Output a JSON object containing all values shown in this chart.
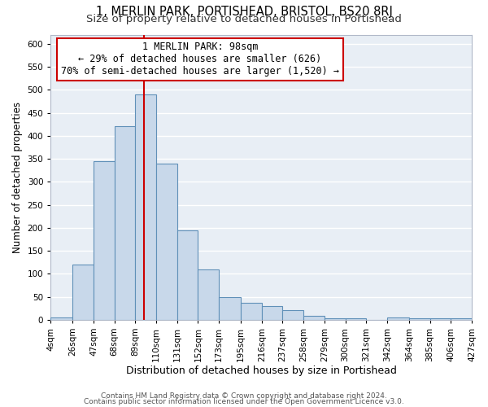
{
  "title_line1": "1, MERLIN PARK, PORTISHEAD, BRISTOL, BS20 8RJ",
  "title_line2": "Size of property relative to detached houses in Portishead",
  "xlabel": "Distribution of detached houses by size in Portishead",
  "ylabel": "Number of detached properties",
  "bar_edges": [
    4,
    26,
    47,
    68,
    89,
    110,
    131,
    152,
    173,
    195,
    216,
    237,
    258,
    279,
    300,
    321,
    342,
    364,
    385,
    406,
    427
  ],
  "bar_heights": [
    5,
    120,
    345,
    420,
    490,
    340,
    195,
    110,
    50,
    37,
    30,
    20,
    8,
    3,
    3,
    0,
    5,
    3,
    3,
    3
  ],
  "bar_color": "#c8d8ea",
  "bar_edge_color": "#6090b8",
  "bg_color": "#e8eef5",
  "grid_color": "#ffffff",
  "annotation_title": "1 MERLIN PARK: 98sqm",
  "annotation_line2": "← 29% of detached houses are smaller (626)",
  "annotation_line3": "70% of semi-detached houses are larger (1,520) →",
  "annotation_box_edge": "#cc0000",
  "marker_line_x": 98,
  "marker_line_color": "#cc0000",
  "ylim": [
    0,
    620
  ],
  "xlim": [
    4,
    427
  ],
  "yticks": [
    0,
    50,
    100,
    150,
    200,
    250,
    300,
    350,
    400,
    450,
    500,
    550,
    600
  ],
  "tick_labels": [
    "4sqm",
    "26sqm",
    "47sqm",
    "68sqm",
    "89sqm",
    "110sqm",
    "131sqm",
    "152sqm",
    "173sqm",
    "195sqm",
    "216sqm",
    "237sqm",
    "258sqm",
    "279sqm",
    "300sqm",
    "321sqm",
    "342sqm",
    "364sqm",
    "385sqm",
    "406sqm",
    "427sqm"
  ],
  "footer_line1": "Contains HM Land Registry data © Crown copyright and database right 2024.",
  "footer_line2": "Contains public sector information licensed under the Open Government Licence v3.0.",
  "title1_fontsize": 10.5,
  "title2_fontsize": 9.5,
  "xlabel_fontsize": 9,
  "ylabel_fontsize": 8.5,
  "tick_fontsize": 7.5,
  "annotation_fontsize": 8.5,
  "footer_fontsize": 6.5
}
